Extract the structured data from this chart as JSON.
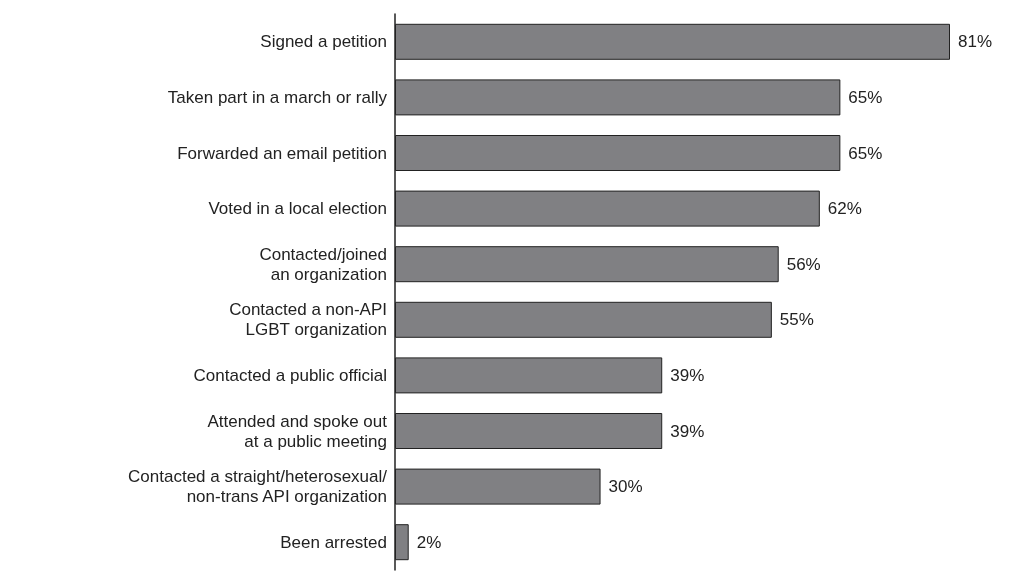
{
  "chart_data": {
    "type": "bar",
    "orientation": "horizontal",
    "categories": [
      "Signed a petition",
      "Taken part in a march or rally",
      "Forwarded an email petition",
      "Voted in a local election",
      "Contacted/joined\nan organization",
      "Contacted a non-API\nLGBT organization",
      "Contacted a public official",
      "Attended and spoke out\nat a public meeting",
      "Contacted a straight/heterosexual/\nnon-trans API organization",
      "Been arrested"
    ],
    "values": [
      81,
      65,
      65,
      62,
      56,
      55,
      39,
      39,
      30,
      2
    ],
    "color": "#808083",
    "value_labels": [
      "81%",
      "65%",
      "65%",
      "62%",
      "56%",
      "55%",
      "39%",
      "39%",
      "30%",
      "2%"
    ]
  }
}
